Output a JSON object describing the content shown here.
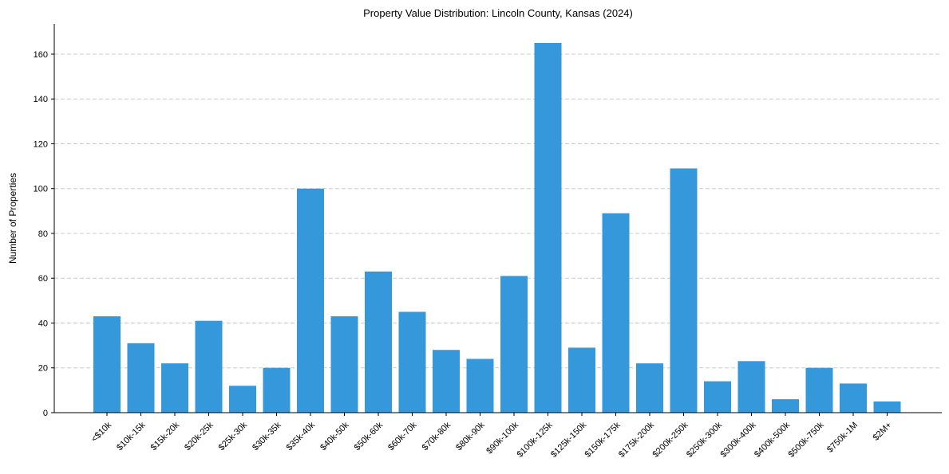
{
  "chart_data": {
    "type": "bar",
    "title": "Property Value Distribution: Lincoln County, Kansas (2024)",
    "xlabel": "",
    "ylabel": "Number of Properties",
    "categories": [
      "<$10k",
      "$10k-15k",
      "$15k-20k",
      "$20k-25k",
      "$25k-30k",
      "$30k-35k",
      "$35k-40k",
      "$40k-50k",
      "$50k-60k",
      "$60k-70k",
      "$70k-80k",
      "$80k-90k",
      "$90k-100k",
      "$100k-125k",
      "$125k-150k",
      "$150k-175k",
      "$175k-200k",
      "$200k-250k",
      "$250k-300k",
      "$300k-400k",
      "$400k-500k",
      "$500k-750k",
      "$750k-1M",
      "$2M+"
    ],
    "values": [
      43,
      31,
      22,
      41,
      12,
      20,
      100,
      43,
      63,
      45,
      28,
      24,
      61,
      165,
      29,
      89,
      22,
      109,
      14,
      23,
      6,
      20,
      13,
      5
    ],
    "ylim": [
      0,
      173.5
    ],
    "yticks": [
      0,
      20,
      40,
      60,
      80,
      100,
      120,
      140,
      160
    ],
    "grid": "y, dashed",
    "bar_color": "#3498db"
  }
}
